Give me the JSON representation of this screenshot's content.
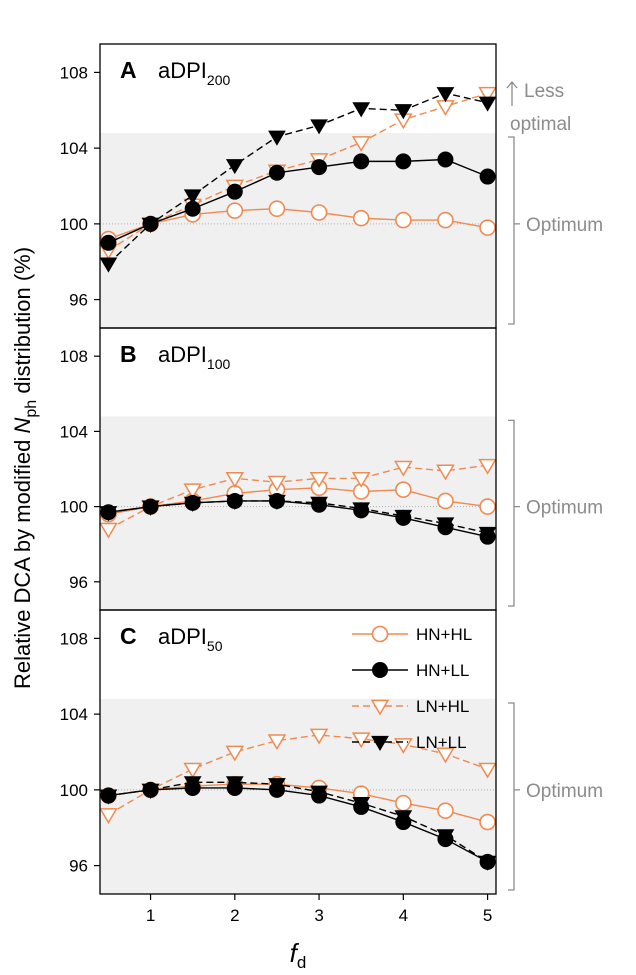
{
  "chart_data": {
    "type": "line",
    "ylabel_prefix": "Relative DCA by modified ",
    "ylabel_var": "N",
    "ylabel_sub": "ph",
    "ylabel_suffix": " distribution (%)",
    "xlabel_main": "f",
    "xlabel_sub": "d",
    "xlim": [
      0.4,
      5.1
    ],
    "ylim": [
      94.5,
      109.5
    ],
    "x_ticks": [
      1,
      2,
      3,
      4,
      5
    ],
    "x_tick_labels": [
      "1",
      "2",
      "3",
      "4",
      "5"
    ],
    "y_ticks": [
      96,
      100,
      104,
      108
    ],
    "y_tick_labels": [
      "96",
      "100",
      "104",
      "108"
    ],
    "optimum_band": [
      94.5,
      104.8
    ],
    "reference_line": 100,
    "x": [
      0.5,
      1,
      1.5,
      2,
      2.5,
      3,
      3.5,
      4,
      4.5,
      5
    ],
    "colors": {
      "orange": "#f08a50",
      "black": "#000000",
      "band": "#f0f0f0",
      "annotation": "#8c8c8c"
    },
    "legend": [
      {
        "label": "HN+HL",
        "color": "#f08a50",
        "marker": "circle-open",
        "dash": false
      },
      {
        "label": "HN+LL",
        "color": "#000000",
        "marker": "circle-filled",
        "dash": false
      },
      {
        "label": "LN+HL",
        "color": "#f08a50",
        "marker": "triangle-open",
        "dash": true
      },
      {
        "label": "LN+LL",
        "color": "#000000",
        "marker": "triangle-filled",
        "dash": true
      }
    ],
    "panels": [
      {
        "letter": "A",
        "title": "aDPI",
        "title_sub": "200",
        "annotation_top": [
          "Less",
          "optimal"
        ],
        "annotation_mid": "Optimum",
        "series": [
          {
            "name": "HN+HL",
            "values": [
              99.2,
              100.0,
              100.5,
              100.7,
              100.8,
              100.6,
              100.3,
              100.2,
              100.2,
              99.8
            ]
          },
          {
            "name": "HN+LL",
            "values": [
              99.0,
              100.0,
              100.8,
              101.7,
              102.7,
              103.0,
              103.3,
              103.3,
              103.4,
              102.5
            ]
          },
          {
            "name": "LN+HL",
            "values": [
              98.6,
              100.0,
              101.0,
              102.0,
              102.8,
              103.4,
              104.3,
              105.5,
              106.2,
              106.9
            ]
          },
          {
            "name": "LN+LL",
            "values": [
              97.9,
              100.0,
              101.5,
              103.1,
              104.6,
              105.2,
              106.1,
              106.0,
              106.9,
              106.4
            ]
          }
        ]
      },
      {
        "letter": "B",
        "title": "aDPI",
        "title_sub": "100",
        "annotation_top": [],
        "annotation_mid": "Optimum",
        "series": [
          {
            "name": "HN+HL",
            "values": [
              99.6,
              100.0,
              100.3,
              100.7,
              100.9,
              101.0,
              100.8,
              100.9,
              100.3,
              100.0
            ]
          },
          {
            "name": "HN+LL",
            "values": [
              99.7,
              100.0,
              100.2,
              100.3,
              100.3,
              100.1,
              99.8,
              99.4,
              98.9,
              98.4
            ]
          },
          {
            "name": "LN+HL",
            "values": [
              98.8,
              100.0,
              100.9,
              101.5,
              101.3,
              101.5,
              101.5,
              102.1,
              101.9,
              102.2
            ]
          },
          {
            "name": "LN+LL",
            "values": [
              99.7,
              100.0,
              100.2,
              100.3,
              100.3,
              100.2,
              99.9,
              99.5,
              99.1,
              98.6
            ]
          }
        ]
      },
      {
        "letter": "C",
        "title": "aDPI",
        "title_sub": "50",
        "annotation_top": [],
        "annotation_mid": "Optimum",
        "series": [
          {
            "name": "HN+HL",
            "values": [
              99.7,
              100.0,
              100.2,
              100.3,
              100.3,
              100.1,
              99.8,
              99.3,
              98.9,
              98.3
            ]
          },
          {
            "name": "HN+LL",
            "values": [
              99.7,
              100.0,
              100.1,
              100.1,
              100.0,
              99.7,
              99.1,
              98.3,
              97.4,
              96.2
            ]
          },
          {
            "name": "LN+HL",
            "values": [
              98.7,
              100.0,
              101.1,
              102.0,
              102.6,
              102.9,
              102.7,
              102.4,
              101.9,
              101.1
            ]
          },
          {
            "name": "LN+LL",
            "values": [
              99.7,
              100.0,
              100.4,
              100.4,
              100.3,
              99.9,
              99.3,
              98.6,
              97.6,
              96.2
            ]
          }
        ]
      }
    ]
  }
}
